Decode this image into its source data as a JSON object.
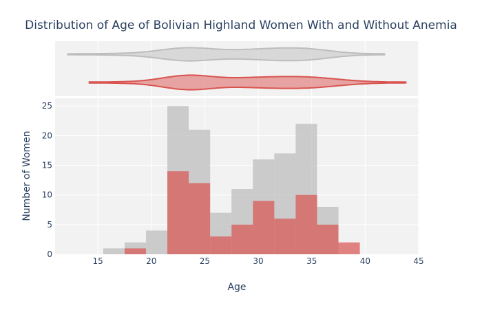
{
  "chart_data": {
    "type": "bar",
    "title": "Distribution of Age of Bolivian Highland Women With and Without Anemia",
    "xlabel": "Age",
    "ylabel": "Number of Women",
    "xlim": [
      11,
      45
    ],
    "ylim": [
      0,
      26.3
    ],
    "xticks": [
      15,
      20,
      25,
      30,
      35,
      40,
      45
    ],
    "yticks": [
      0,
      5,
      10,
      15,
      20,
      25
    ],
    "bin_width": 2,
    "bin_starts": [
      15.5,
      17.5,
      19.5,
      21.5,
      23.5,
      25.5,
      27.5,
      29.5,
      31.5,
      33.5,
      35.5,
      37.5
    ],
    "barmode": "overlay",
    "grid": true,
    "series": [
      {
        "values": [
          1,
          2,
          4,
          25,
          21,
          7,
          11,
          16,
          17,
          22,
          8,
          0
        ],
        "color": "#bdbdbd"
      },
      {
        "values": [
          0,
          1,
          0,
          14,
          12,
          3,
          5,
          9,
          6,
          10,
          5,
          2
        ],
        "color": "#d9534f"
      }
    ],
    "marginal_violins": [
      {
        "color": "#bdbdbd",
        "range": [
          12.2,
          41.8
        ]
      },
      {
        "color": "#d9534f",
        "range": [
          14.2,
          43.8
        ]
      }
    ]
  }
}
